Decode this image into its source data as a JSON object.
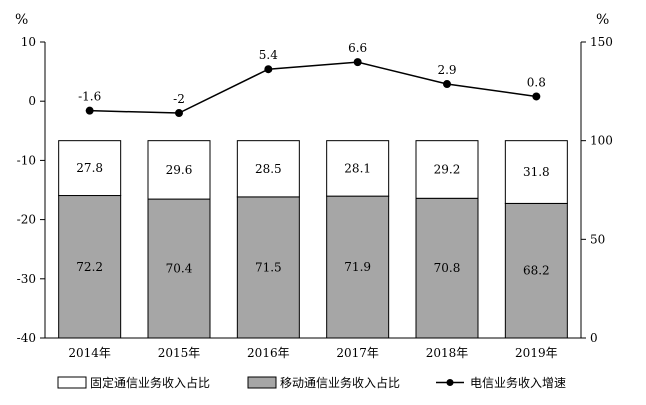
{
  "chart_data": {
    "type": "bar",
    "unit_left": "%",
    "unit_right": "%",
    "categories": [
      "2014年",
      "2015年",
      "2016年",
      "2017年",
      "2018年",
      "2019年"
    ],
    "left_axis": {
      "ylim": [
        -40,
        10
      ],
      "ticks": [
        -40,
        -30,
        -20,
        -10,
        0,
        10
      ]
    },
    "right_axis": {
      "ylim": [
        0,
        150
      ],
      "ticks": [
        0,
        50,
        100,
        150
      ]
    },
    "series": [
      {
        "name": "移动通信业务收入占比",
        "kind": "stacked-bar",
        "axis": "right",
        "color": "#a6a6a6",
        "values": [
          72.2,
          70.4,
          71.5,
          71.9,
          70.8,
          68.2
        ]
      },
      {
        "name": "固定通信业务收入占比",
        "kind": "stacked-bar",
        "axis": "right",
        "color": "#ffffff",
        "values": [
          27.8,
          29.6,
          28.5,
          28.1,
          29.2,
          31.8
        ]
      },
      {
        "name": "电信业务收入增速",
        "kind": "line",
        "axis": "left",
        "color": "#000000",
        "values": [
          -1.6,
          -2,
          5.4,
          6.6,
          2.9,
          0.8
        ]
      }
    ],
    "point_labels": [
      "-1.6",
      "-2",
      "5.4",
      "6.6",
      "2.9",
      "0.8"
    ],
    "legend": [
      "固定通信业务收入占比",
      "移动通信业务收入占比",
      "电信业务收入增速"
    ],
    "legend_position": "bottom",
    "grid": false
  }
}
